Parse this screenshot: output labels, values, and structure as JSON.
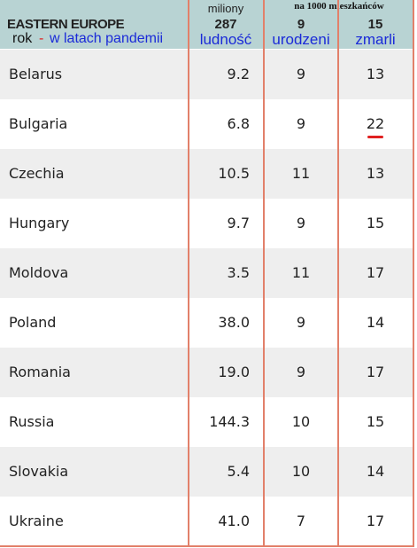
{
  "header": {
    "region": "EASTERN EUROPE",
    "year_label": "rok",
    "year_note_dash": "-",
    "year_note": "w latach pandemii",
    "per_1000": "na 1000 mieszkańców",
    "columns": [
      {
        "unit": "miliony",
        "year": "287",
        "label": "ludność"
      },
      {
        "year": "9",
        "label": "urodzeni"
      },
      {
        "year": "15",
        "label": "zmarli"
      }
    ]
  },
  "table": {
    "rows": [
      [
        "Belarus",
        "9.2",
        "9",
        "13"
      ],
      [
        "Bulgaria",
        "6.8",
        "9",
        "22"
      ],
      [
        "Czechia",
        "10.5",
        "11",
        "13"
      ],
      [
        "Hungary",
        "9.7",
        "9",
        "15"
      ],
      [
        "Moldova",
        "3.5",
        "11",
        "17"
      ],
      [
        "Poland",
        "38.0",
        "9",
        "14"
      ],
      [
        "Romania",
        "19.0",
        "9",
        "17"
      ],
      [
        "Russia",
        "144.3",
        "10",
        "15"
      ],
      [
        "Slovakia",
        "5.4",
        "10",
        "14"
      ],
      [
        "Ukraine",
        "41.0",
        "7",
        "17"
      ]
    ]
  }
}
